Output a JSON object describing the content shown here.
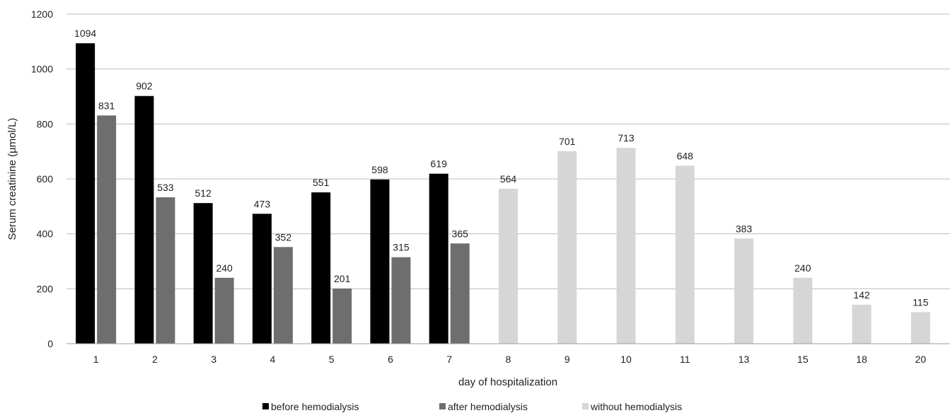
{
  "chart_data": {
    "type": "bar",
    "xlabel": "day of hospitalization",
    "ylabel": "Serum creatinine (µmol/L)",
    "ylim": [
      0,
      1200
    ],
    "yticks": [
      0,
      200,
      400,
      600,
      800,
      1000,
      1200
    ],
    "grid": true,
    "legend_position": "bottom",
    "categories": [
      "1",
      "2",
      "3",
      "4",
      "5",
      "6",
      "7",
      "8",
      "9",
      "10",
      "11",
      "13",
      "15",
      "18",
      "20"
    ],
    "series": [
      {
        "name": "before hemodialysis",
        "color": "#000000",
        "values": [
          1094,
          902,
          512,
          473,
          551,
          598,
          619,
          null,
          null,
          null,
          null,
          null,
          null,
          null,
          null
        ]
      },
      {
        "name": "after hemodialysis",
        "color": "#6e6e6e",
        "values": [
          831,
          533,
          240,
          352,
          201,
          315,
          365,
          null,
          null,
          null,
          null,
          null,
          null,
          null,
          null
        ]
      },
      {
        "name": "without hemodialysis",
        "color": "#d6d6d6",
        "values": [
          null,
          null,
          null,
          null,
          null,
          null,
          null,
          564,
          701,
          713,
          648,
          383,
          240,
          142,
          115
        ]
      }
    ]
  }
}
